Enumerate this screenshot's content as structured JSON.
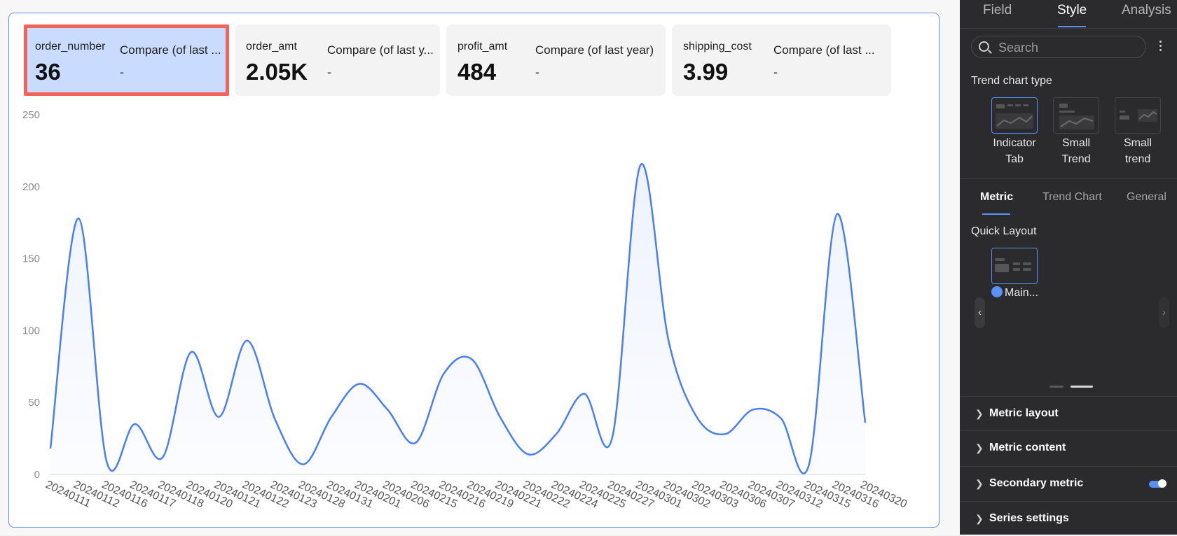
{
  "kpis": [
    {
      "name": "order_number",
      "value": "36",
      "compare": "Compare (of last ...",
      "dash": "-"
    },
    {
      "name": "order_amt",
      "value": "2.05K",
      "compare": "Compare (of last y...",
      "dash": "-"
    },
    {
      "name": "profit_amt",
      "value": "484",
      "compare": "Compare (of last year)",
      "dash": "-"
    },
    {
      "name": "shipping_cost",
      "value": "3.99",
      "compare": "Compare (of last ...",
      "dash": "-"
    }
  ],
  "chart_data": {
    "type": "area",
    "title": "",
    "xlabel": "",
    "ylabel": "",
    "ylim": [
      0,
      250
    ],
    "yticks": [
      0,
      50,
      100,
      150,
      200,
      250
    ],
    "x": [
      "20240111",
      "20240112",
      "20240116",
      "20240117",
      "20240118",
      "20240120",
      "20240121",
      "20240122",
      "20240123",
      "20240128",
      "20240131",
      "20240201",
      "20240206",
      "20240215",
      "20240216",
      "20240219",
      "20240221",
      "20240222",
      "20240224",
      "20240225",
      "20240227",
      "20240301",
      "20240302",
      "20240303",
      "20240306",
      "20240307",
      "20240312",
      "20240315",
      "20240316",
      "20240320"
    ],
    "series": [
      {
        "values": [
          18,
          178,
          9,
          35,
          12,
          85,
          40,
          93,
          38,
          7,
          40,
          63,
          45,
          22,
          70,
          80,
          40,
          14,
          28,
          56,
          26,
          215,
          93,
          40,
          28,
          45,
          39,
          7,
          181,
          36
        ]
      }
    ],
    "grid": false,
    "legend": "none",
    "line_color": "#4a7ef5"
  },
  "panel": {
    "tabs": [
      "Field",
      "Style",
      "Analysis"
    ],
    "active_tab": "Style",
    "search_placeholder": "Search",
    "trend_chart_type_label": "Trend chart type",
    "trend_types": [
      {
        "line1": "Indicator",
        "line2": "Tab"
      },
      {
        "line1": "Small",
        "line2": "Trend"
      },
      {
        "line1": "Small",
        "line2": "trend"
      }
    ],
    "subtabs": [
      "Metric",
      "Trend Chart",
      "General"
    ],
    "quick_layout_label": "Quick Layout",
    "quick_layout_item": "Main...",
    "sections": [
      "Metric layout",
      "Metric content",
      "Secondary metric",
      "Series settings"
    ],
    "accent": "#5b8ff9"
  }
}
